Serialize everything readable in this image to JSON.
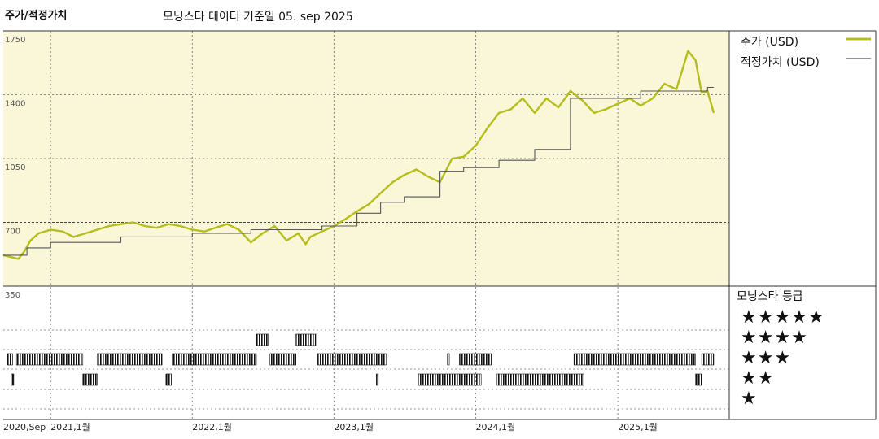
{
  "header": {
    "left_title": "주가/적정가치",
    "center_title": "모닝스타 데이터 기준일 05. sep 2025"
  },
  "legend": {
    "price_label": "주가 (USD)",
    "fair_label": "적정가치 (USD)",
    "price_color": "#b5bd1c",
    "fair_color": "#555555"
  },
  "rating_panel": {
    "title": "모닝스타 등급",
    "stars": [
      "★★★★★",
      "★★★★",
      "★★★",
      "★★",
      "★"
    ]
  },
  "chart_data": {
    "type": "line",
    "ylim": [
      350,
      1750
    ],
    "yticks": [
      "1750",
      "1400",
      "1050",
      "700",
      "350"
    ],
    "xlim": [
      "2020-09-01",
      "2025-10-15"
    ],
    "xticks": [
      {
        "label": "2020,Sep",
        "date": "2020-09-01"
      },
      {
        "label": "2021,1월",
        "date": "2021-01-01"
      },
      {
        "label": "2022,1월",
        "date": "2022-01-01"
      },
      {
        "label": "2023,1월",
        "date": "2023-01-01"
      },
      {
        "label": "2024,1월",
        "date": "2024-01-01"
      },
      {
        "label": "2025,1월",
        "date": "2025-01-01"
      }
    ],
    "series": [
      {
        "name": "주가 (USD)",
        "color": "#b5bd1c",
        "points": [
          [
            "2020-09-01",
            520
          ],
          [
            "2020-09-20",
            510
          ],
          [
            "2020-10-10",
            500
          ],
          [
            "2020-10-25",
            540
          ],
          [
            "2020-11-10",
            600
          ],
          [
            "2020-12-01",
            640
          ],
          [
            "2021-01-01",
            660
          ],
          [
            "2021-02-01",
            650
          ],
          [
            "2021-03-01",
            620
          ],
          [
            "2021-04-01",
            640
          ],
          [
            "2021-05-01",
            660
          ],
          [
            "2021-06-01",
            680
          ],
          [
            "2021-07-01",
            690
          ],
          [
            "2021-08-01",
            700
          ],
          [
            "2021-09-01",
            680
          ],
          [
            "2021-10-01",
            670
          ],
          [
            "2021-11-01",
            690
          ],
          [
            "2021-12-01",
            680
          ],
          [
            "2022-01-01",
            660
          ],
          [
            "2022-02-01",
            650
          ],
          [
            "2022-03-01",
            670
          ],
          [
            "2022-04-01",
            690
          ],
          [
            "2022-05-01",
            660
          ],
          [
            "2022-06-01",
            590
          ],
          [
            "2022-07-01",
            640
          ],
          [
            "2022-08-01",
            680
          ],
          [
            "2022-09-01",
            600
          ],
          [
            "2022-10-01",
            640
          ],
          [
            "2022-10-20",
            580
          ],
          [
            "2022-11-01",
            620
          ],
          [
            "2022-12-01",
            650
          ],
          [
            "2023-01-01",
            680
          ],
          [
            "2023-02-01",
            720
          ],
          [
            "2023-03-01",
            760
          ],
          [
            "2023-04-01",
            800
          ],
          [
            "2023-05-01",
            860
          ],
          [
            "2023-06-01",
            920
          ],
          [
            "2023-07-01",
            960
          ],
          [
            "2023-08-01",
            990
          ],
          [
            "2023-09-01",
            950
          ],
          [
            "2023-10-01",
            920
          ],
          [
            "2023-11-01",
            1050
          ],
          [
            "2023-12-01",
            1060
          ],
          [
            "2024-01-01",
            1120
          ],
          [
            "2024-02-01",
            1220
          ],
          [
            "2024-03-01",
            1300
          ],
          [
            "2024-04-01",
            1320
          ],
          [
            "2024-05-01",
            1380
          ],
          [
            "2024-06-01",
            1300
          ],
          [
            "2024-07-01",
            1380
          ],
          [
            "2024-08-01",
            1330
          ],
          [
            "2024-09-01",
            1420
          ],
          [
            "2024-10-01",
            1370
          ],
          [
            "2024-11-01",
            1300
          ],
          [
            "2024-12-01",
            1320
          ],
          [
            "2025-01-01",
            1350
          ],
          [
            "2025-02-01",
            1380
          ],
          [
            "2025-03-01",
            1340
          ],
          [
            "2025-04-01",
            1380
          ],
          [
            "2025-05-01",
            1460
          ],
          [
            "2025-06-01",
            1430
          ],
          [
            "2025-07-01",
            1640
          ],
          [
            "2025-07-20",
            1590
          ],
          [
            "2025-08-05",
            1410
          ],
          [
            "2025-08-20",
            1420
          ],
          [
            "2025-09-05",
            1300
          ]
        ]
      },
      {
        "name": "적정가치 (USD)",
        "color": "#555555",
        "points": [
          [
            "2020-09-01",
            520
          ],
          [
            "2020-11-01",
            520
          ],
          [
            "2020-11-01",
            560
          ],
          [
            "2021-01-01",
            560
          ],
          [
            "2021-01-01",
            590
          ],
          [
            "2021-07-01",
            590
          ],
          [
            "2021-07-01",
            620
          ],
          [
            "2022-01-01",
            620
          ],
          [
            "2022-01-01",
            640
          ],
          [
            "2022-06-01",
            640
          ],
          [
            "2022-06-01",
            660
          ],
          [
            "2022-12-01",
            660
          ],
          [
            "2022-12-01",
            680
          ],
          [
            "2023-03-01",
            680
          ],
          [
            "2023-03-01",
            750
          ],
          [
            "2023-05-01",
            750
          ],
          [
            "2023-05-01",
            810
          ],
          [
            "2023-07-01",
            810
          ],
          [
            "2023-07-01",
            840
          ],
          [
            "2023-10-01",
            840
          ],
          [
            "2023-10-01",
            980
          ],
          [
            "2023-12-01",
            980
          ],
          [
            "2023-12-01",
            1000
          ],
          [
            "2024-03-01",
            1000
          ],
          [
            "2024-03-01",
            1040
          ],
          [
            "2024-06-01",
            1040
          ],
          [
            "2024-06-01",
            1100
          ],
          [
            "2024-09-01",
            1100
          ],
          [
            "2024-09-01",
            1380
          ],
          [
            "2025-03-01",
            1380
          ],
          [
            "2025-03-01",
            1420
          ],
          [
            "2025-08-20",
            1420
          ],
          [
            "2025-08-20",
            1440
          ],
          [
            "2025-09-05",
            1440
          ]
        ]
      }
    ],
    "ratings": [
      {
        "start": "2020-09-10",
        "end": "2020-09-25",
        "stars": 3
      },
      {
        "start": "2020-09-22",
        "end": "2020-09-28",
        "stars": 2
      },
      {
        "start": "2020-10-05",
        "end": "2021-03-25",
        "stars": 3
      },
      {
        "start": "2021-03-25",
        "end": "2021-05-01",
        "stars": 2
      },
      {
        "start": "2021-05-01",
        "end": "2021-10-15",
        "stars": 3
      },
      {
        "start": "2021-10-25",
        "end": "2021-11-08",
        "stars": 2
      },
      {
        "start": "2021-11-10",
        "end": "2022-06-15",
        "stars": 3
      },
      {
        "start": "2022-06-15",
        "end": "2022-07-15",
        "stars": 4
      },
      {
        "start": "2022-07-20",
        "end": "2022-09-25",
        "stars": 3
      },
      {
        "start": "2022-09-25",
        "end": "2022-11-15",
        "stars": 4
      },
      {
        "start": "2022-11-20",
        "end": "2023-05-15",
        "stars": 3
      },
      {
        "start": "2023-04-20",
        "end": "2023-04-25",
        "stars": 2
      },
      {
        "start": "2023-08-05",
        "end": "2024-01-15",
        "stars": 2
      },
      {
        "start": "2023-10-20",
        "end": "2023-10-25",
        "stars": 3
      },
      {
        "start": "2023-11-20",
        "end": "2024-02-10",
        "stars": 3
      },
      {
        "start": "2024-02-25",
        "end": "2024-10-05",
        "stars": 2
      },
      {
        "start": "2024-09-10",
        "end": "2025-07-20",
        "stars": 3
      },
      {
        "start": "2025-07-20",
        "end": "2025-08-05",
        "stars": 2
      },
      {
        "start": "2025-08-05",
        "end": "2025-09-05",
        "stars": 3
      }
    ]
  }
}
